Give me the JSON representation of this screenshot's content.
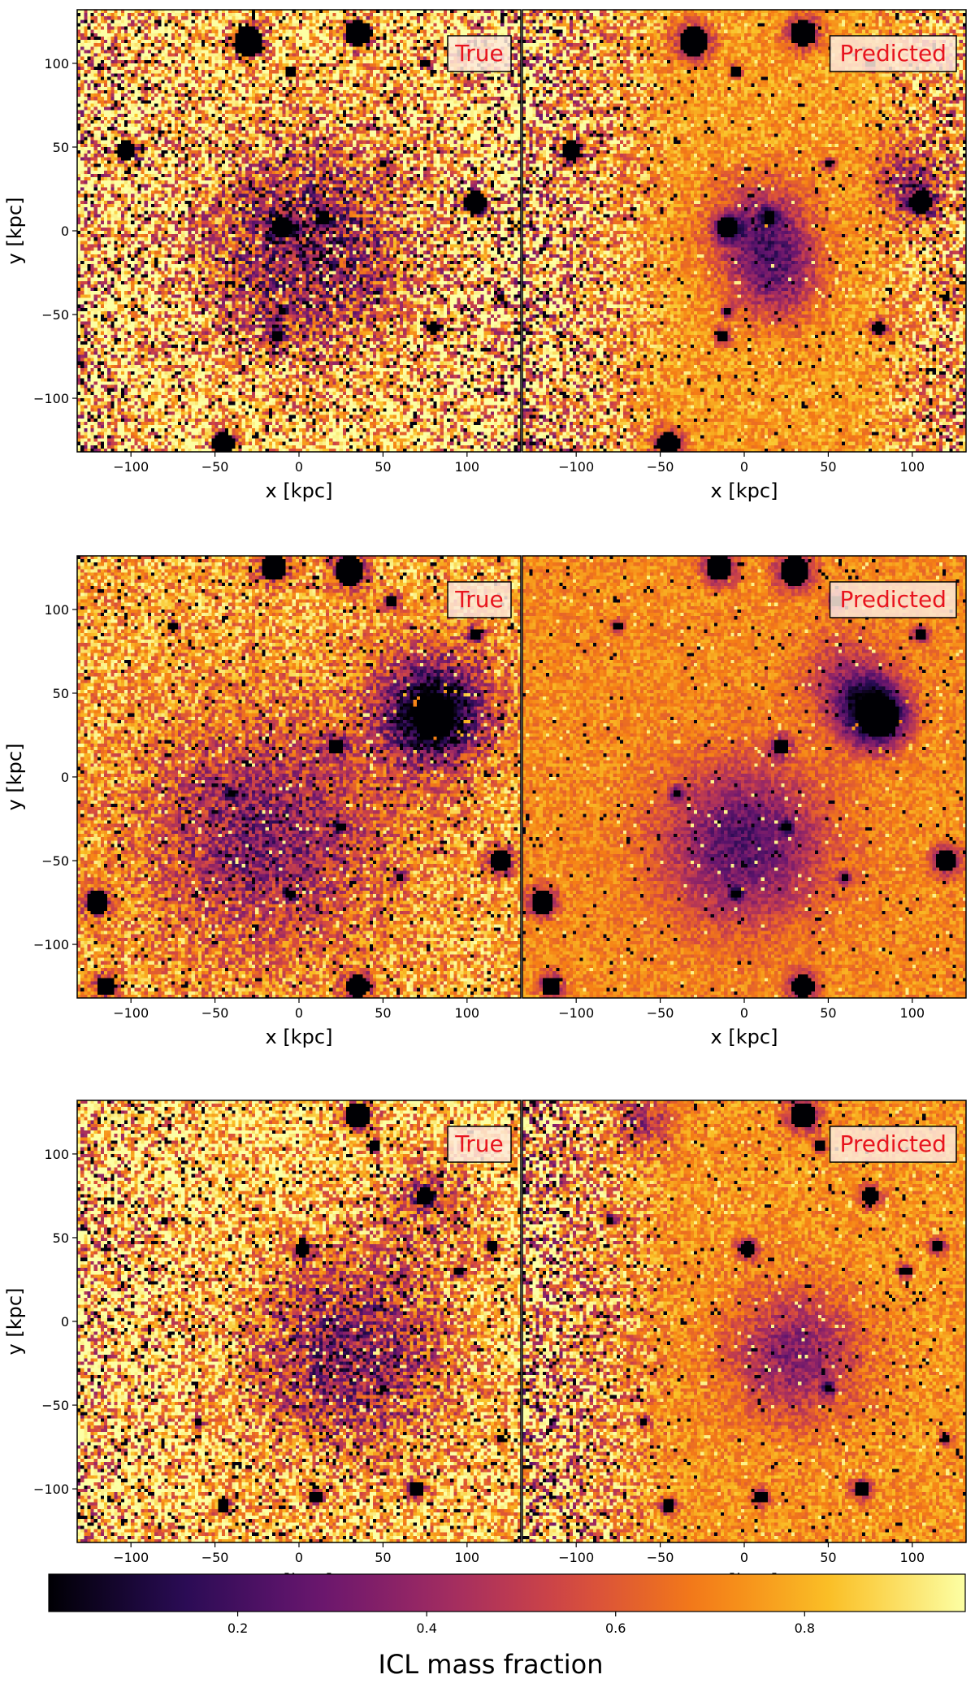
{
  "chart_data": [
    {
      "type": "heatmap",
      "row": 1,
      "panels": [
        {
          "panel_label": "True",
          "xlabel": "x [kpc]",
          "ylabel": "y [kpc]"
        },
        {
          "panel_label": "Predicted",
          "xlabel": "x [kpc]"
        }
      ],
      "xlim": [
        -132,
        132
      ],
      "ylim": [
        -132,
        132
      ],
      "xticks": [
        -100,
        -50,
        0,
        50,
        100
      ],
      "yticks": [
        -100,
        -50,
        0,
        50,
        100
      ],
      "field": {
        "background_true": 0.9,
        "noise_true": 0.35,
        "background_predicted": 0.78,
        "noise_predicted": 0.12,
        "true_blobs": [
          {
            "x": 5,
            "y": -10,
            "r": 75,
            "depth": 0.6
          }
        ],
        "predicted_blobs": [
          {
            "x": 10,
            "y": 0,
            "r": 35,
            "depth": 0.45
          },
          {
            "x": 20,
            "y": -30,
            "r": 30,
            "depth": 0.35
          },
          {
            "x": 100,
            "y": 30,
            "r": 25,
            "depth": 0.35
          }
        ],
        "noisy_side": "both",
        "sources": [
          {
            "x": -30,
            "y": 113,
            "r": 9
          },
          {
            "x": -103,
            "y": 48,
            "r": 6
          },
          {
            "x": -10,
            "y": 2,
            "r": 6
          },
          {
            "x": 105,
            "y": 17,
            "r": 7
          },
          {
            "x": -45,
            "y": -127,
            "r": 7
          },
          {
            "x": 35,
            "y": 118,
            "r": 8
          },
          {
            "x": -13,
            "y": -63,
            "r": 4
          },
          {
            "x": 80,
            "y": -58,
            "r": 4
          },
          {
            "x": -5,
            "y": 95,
            "r": 3
          },
          {
            "x": 75,
            "y": 100,
            "r": 3
          },
          {
            "x": 50,
            "y": 40,
            "r": 3
          },
          {
            "x": 120,
            "y": -40,
            "r": 3
          },
          {
            "x": 15,
            "y": 8,
            "r": 4
          },
          {
            "x": -10,
            "y": -48,
            "r": 3
          }
        ]
      }
    },
    {
      "type": "heatmap",
      "row": 2,
      "panels": [
        {
          "panel_label": "True",
          "xlabel": "x [kpc]",
          "ylabel": "y [kpc]"
        },
        {
          "panel_label": "Predicted",
          "xlabel": "x [kpc]"
        }
      ],
      "xlim": [
        -132,
        132
      ],
      "ylim": [
        -132,
        132
      ],
      "xticks": [
        -100,
        -50,
        0,
        50,
        100
      ],
      "yticks": [
        -100,
        -50,
        0,
        50,
        100
      ],
      "field": {
        "background_true": 0.8,
        "noise_true": 0.22,
        "background_predicted": 0.74,
        "noise_predicted": 0.1,
        "true_blobs": [
          {
            "x": 80,
            "y": 40,
            "r": 42,
            "depth": 0.7
          },
          {
            "x": -20,
            "y": -35,
            "r": 80,
            "depth": 0.45
          }
        ],
        "predicted_blobs": [
          {
            "x": 0,
            "y": -40,
            "r": 55,
            "depth": 0.5
          },
          {
            "x": 75,
            "y": 40,
            "r": 25,
            "depth": 0.5
          },
          {
            "x": 60,
            "y": 60,
            "r": 30,
            "depth": 0.25
          }
        ],
        "noisy_side": "none",
        "sources": [
          {
            "x": 80,
            "y": 36,
            "r": 13
          },
          {
            "x": 30,
            "y": 123,
            "r": 9
          },
          {
            "x": -15,
            "y": 125,
            "r": 8
          },
          {
            "x": -120,
            "y": -75,
            "r": 7
          },
          {
            "x": -115,
            "y": -125,
            "r": 6
          },
          {
            "x": 120,
            "y": -50,
            "r": 7
          },
          {
            "x": 35,
            "y": -125,
            "r": 7
          },
          {
            "x": 22,
            "y": 18,
            "r": 5
          },
          {
            "x": -40,
            "y": -10,
            "r": 3
          },
          {
            "x": 55,
            "y": 105,
            "r": 4
          },
          {
            "x": 105,
            "y": 85,
            "r": 4
          },
          {
            "x": -75,
            "y": 90,
            "r": 3
          },
          {
            "x": 25,
            "y": -30,
            "r": 3
          },
          {
            "x": -5,
            "y": -70,
            "r": 3
          },
          {
            "x": 60,
            "y": -60,
            "r": 3
          }
        ]
      }
    },
    {
      "type": "heatmap",
      "row": 3,
      "panels": [
        {
          "panel_label": "True",
          "xlabel": "x [kpc]",
          "ylabel": "y [kpc]"
        },
        {
          "panel_label": "Predicted",
          "xlabel": "x [kpc]"
        }
      ],
      "xlim": [
        -132,
        132
      ],
      "ylim": [
        -132,
        132
      ],
      "xticks": [
        -100,
        -50,
        0,
        50,
        100
      ],
      "yticks": [
        -100,
        -50,
        0,
        50,
        100
      ],
      "field": {
        "background_true": 0.88,
        "noise_true": 0.3,
        "background_predicted": 0.76,
        "noise_predicted": 0.12,
        "true_blobs": [
          {
            "x": 30,
            "y": -20,
            "r": 70,
            "depth": 0.55
          },
          {
            "x": 80,
            "y": 70,
            "r": 35,
            "depth": 0.3
          }
        ],
        "predicted_blobs": [
          {
            "x": 30,
            "y": -20,
            "r": 45,
            "depth": 0.4
          },
          {
            "x": -60,
            "y": 120,
            "r": 20,
            "depth": 0.3
          }
        ],
        "noisy_side": "left",
        "sources": [
          {
            "x": 35,
            "y": 123,
            "r": 8
          },
          {
            "x": 2,
            "y": 43,
            "r": 5
          },
          {
            "x": 75,
            "y": 75,
            "r": 5
          },
          {
            "x": 115,
            "y": 45,
            "r": 4
          },
          {
            "x": 10,
            "y": -105,
            "r": 4
          },
          {
            "x": 70,
            "y": -100,
            "r": 5
          },
          {
            "x": -45,
            "y": -110,
            "r": 4
          },
          {
            "x": 95,
            "y": 30,
            "r": 3
          },
          {
            "x": 50,
            "y": -40,
            "r": 3
          },
          {
            "x": -80,
            "y": 60,
            "r": 3
          },
          {
            "x": 120,
            "y": -70,
            "r": 3
          },
          {
            "x": -60,
            "y": -60,
            "r": 3
          },
          {
            "x": 45,
            "y": 105,
            "r": 3
          }
        ]
      }
    }
  ],
  "colorbar": {
    "label": "ICL mass fraction",
    "ticks": [
      0.2,
      0.4,
      0.6,
      0.8
    ],
    "tick_labels": [
      "0.2",
      "0.4",
      "0.6",
      "0.8"
    ],
    "range": [
      0.0,
      0.97
    ],
    "colormap": "inferno"
  }
}
